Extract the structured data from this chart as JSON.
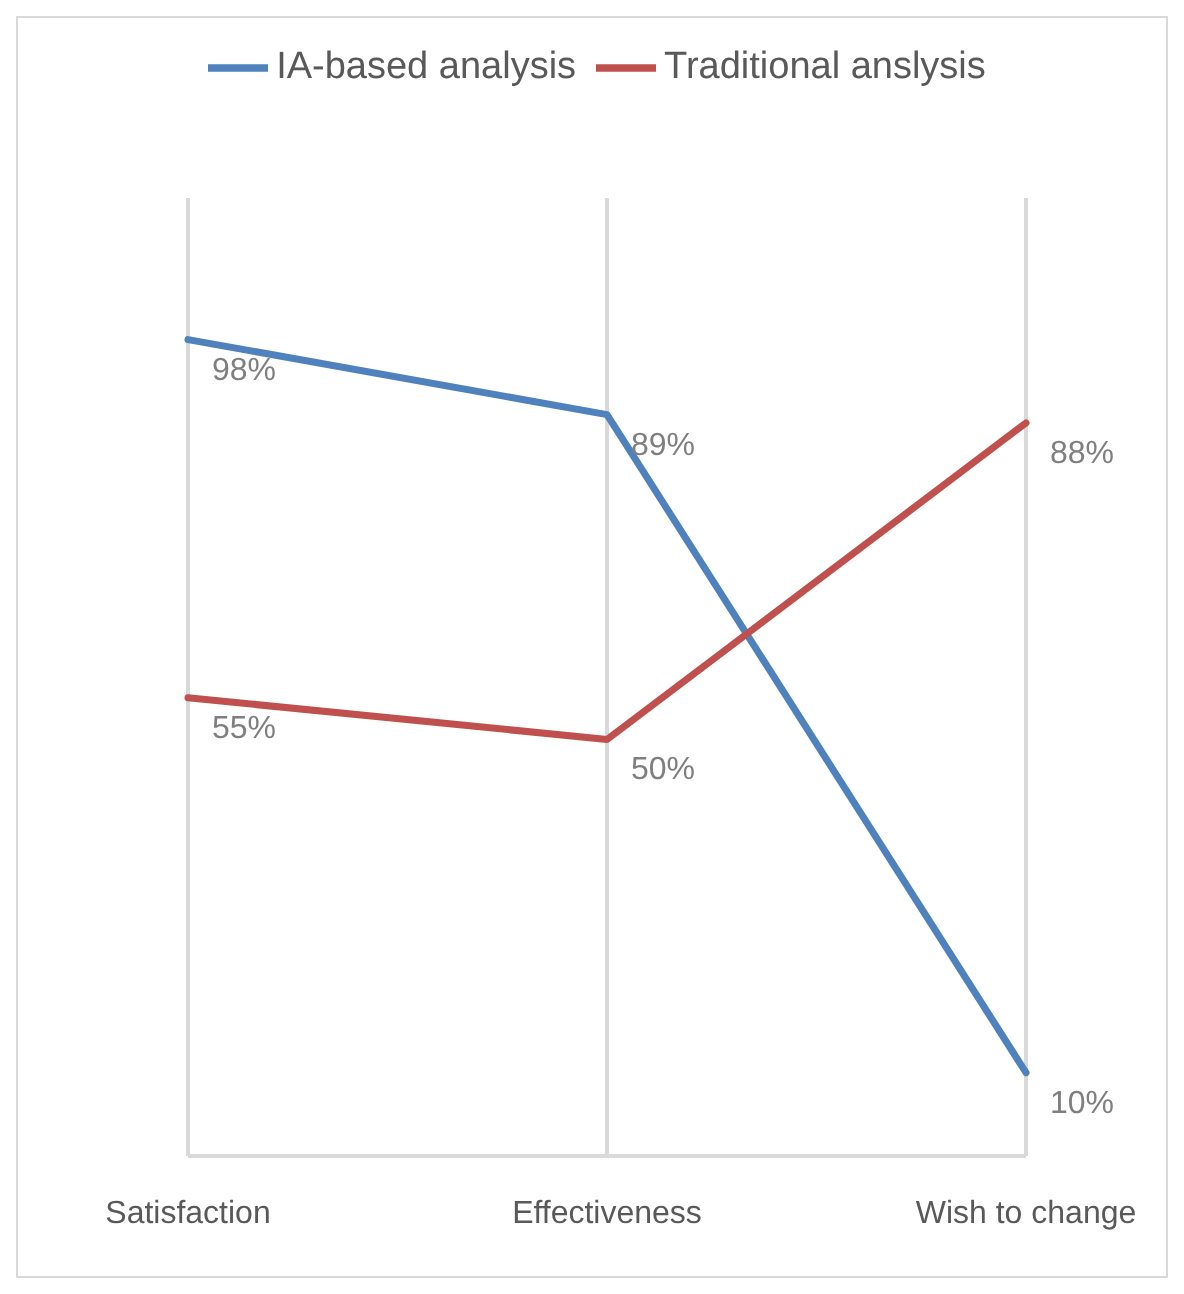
{
  "chart_data": {
    "type": "line",
    "categories": [
      "Satisfaction",
      "Effectiveness",
      "Wish to change"
    ],
    "series": [
      {
        "name": "IA-based analysis",
        "color": "#4f81bd",
        "values": [
          98,
          89,
          10
        ],
        "value_labels": [
          "98%",
          "89%",
          "10%"
        ]
      },
      {
        "name": "Traditional anslysis",
        "color": "#c0504d",
        "values": [
          55,
          50,
          88
        ],
        "value_labels": [
          "55%",
          "50%",
          "88%"
        ]
      }
    ],
    "ylim": [
      0,
      115
    ],
    "grid": "x",
    "legend": "top",
    "marker": "none",
    "line_style": "solid",
    "tick_labels": "x"
  }
}
